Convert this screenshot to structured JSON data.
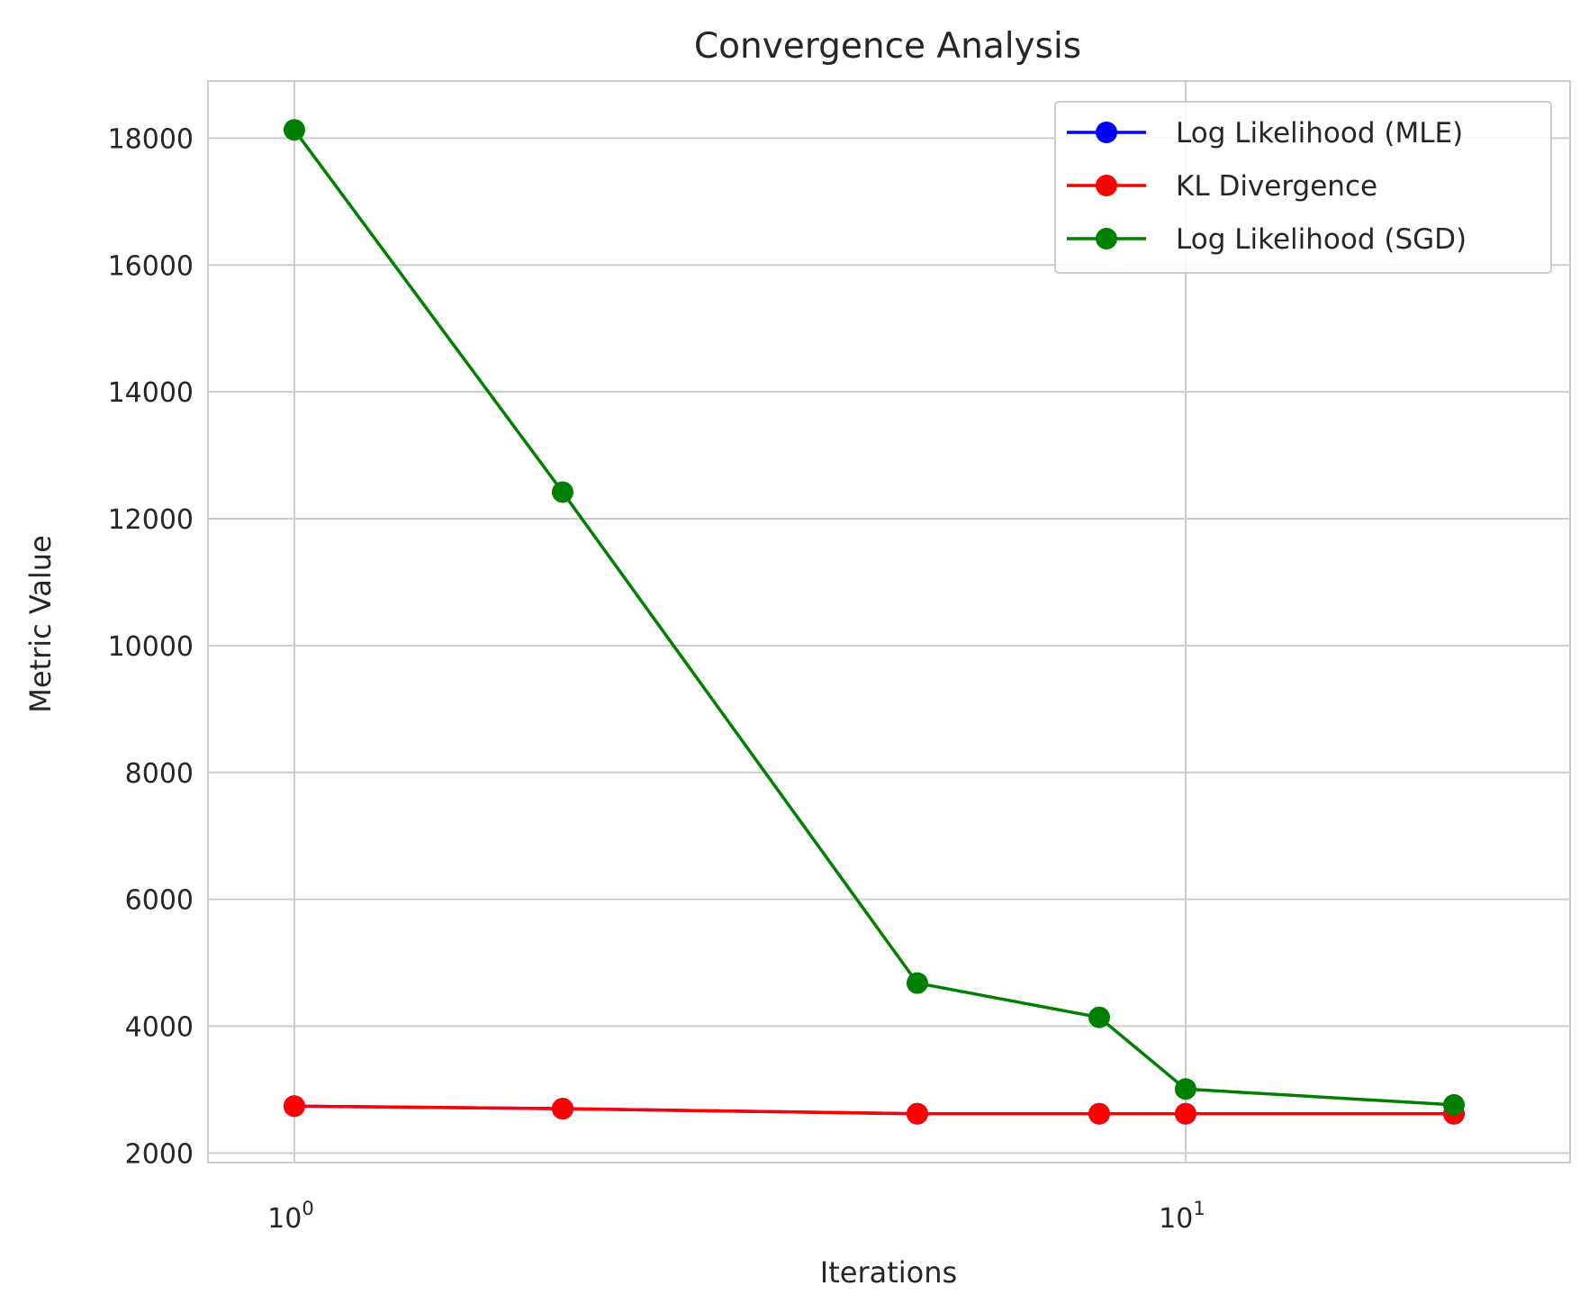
{
  "chart_data": {
    "type": "line",
    "title": "Convergence Analysis",
    "xlabel": "Iterations",
    "ylabel": "Metric Value",
    "x_scale": "log",
    "xlim": [
      0.8,
      27
    ],
    "ylim": [
      1850,
      18900
    ],
    "x_ticks": [
      {
        "value": 1,
        "base": "10",
        "exp": "0"
      },
      {
        "value": 10,
        "base": "10",
        "exp": "1"
      }
    ],
    "y_ticks": [
      2000,
      4000,
      6000,
      8000,
      10000,
      12000,
      14000,
      16000,
      18000
    ],
    "grid": true,
    "legend_position": "top-right",
    "x": [
      1,
      2,
      5,
      8,
      10,
      20
    ],
    "series": [
      {
        "name": "Log Likelihood (MLE)",
        "color": "#0000ff",
        "values": [
          2740,
          2700,
          2620,
          2620,
          2620,
          2620
        ]
      },
      {
        "name": "KL Divergence",
        "color": "#ff0000",
        "values": [
          2740,
          2700,
          2620,
          2620,
          2620,
          2620
        ]
      },
      {
        "name": "Log Likelihood (SGD)",
        "color": "#008000",
        "values": [
          18130,
          12420,
          4680,
          4140,
          3010,
          2760
        ]
      }
    ]
  }
}
